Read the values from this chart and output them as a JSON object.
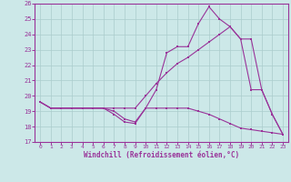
{
  "xlabel": "Windchill (Refroidissement éolien,°C)",
  "xlim": [
    -0.5,
    23.5
  ],
  "ylim": [
    17,
    26
  ],
  "yticks": [
    17,
    18,
    19,
    20,
    21,
    22,
    23,
    24,
    25,
    26
  ],
  "xticks": [
    0,
    1,
    2,
    3,
    4,
    5,
    6,
    7,
    8,
    9,
    10,
    11,
    12,
    13,
    14,
    15,
    16,
    17,
    18,
    19,
    20,
    21,
    22,
    23
  ],
  "background_color": "#cce8e8",
  "grid_color": "#aacccc",
  "line_color": "#993399",
  "line1_x": [
    0,
    1,
    2,
    3,
    4,
    5,
    6,
    7,
    8,
    9,
    10,
    11,
    12,
    13,
    14,
    15,
    16,
    17,
    18,
    19,
    20,
    21,
    22,
    23
  ],
  "line1_y": [
    19.6,
    19.2,
    19.2,
    19.2,
    19.2,
    19.2,
    19.2,
    19.0,
    18.5,
    18.3,
    19.2,
    20.4,
    22.8,
    23.2,
    23.2,
    24.7,
    25.8,
    25.0,
    24.5,
    23.7,
    20.4,
    20.4,
    18.8,
    17.5
  ],
  "line2_x": [
    0,
    1,
    2,
    3,
    4,
    5,
    6,
    7,
    8,
    9,
    10,
    11,
    12,
    13,
    14,
    15,
    16,
    17,
    18,
    19,
    20,
    21,
    22,
    23
  ],
  "line2_y": [
    19.6,
    19.2,
    19.2,
    19.2,
    19.2,
    19.2,
    19.2,
    19.2,
    19.2,
    19.2,
    20.0,
    20.8,
    21.5,
    22.1,
    22.5,
    23.0,
    23.5,
    24.0,
    24.5,
    23.7,
    23.7,
    20.4,
    18.8,
    17.5
  ],
  "line3_x": [
    0,
    1,
    2,
    3,
    4,
    5,
    6,
    7,
    8,
    9,
    10,
    11,
    12,
    13,
    14,
    15,
    16,
    17,
    18,
    19,
    20,
    21,
    22,
    23
  ],
  "line3_y": [
    19.6,
    19.2,
    19.2,
    19.2,
    19.2,
    19.2,
    19.2,
    18.8,
    18.3,
    18.2,
    19.2,
    19.2,
    19.2,
    19.2,
    19.2,
    19.0,
    18.8,
    18.5,
    18.2,
    17.9,
    17.8,
    17.7,
    17.6,
    17.5
  ]
}
